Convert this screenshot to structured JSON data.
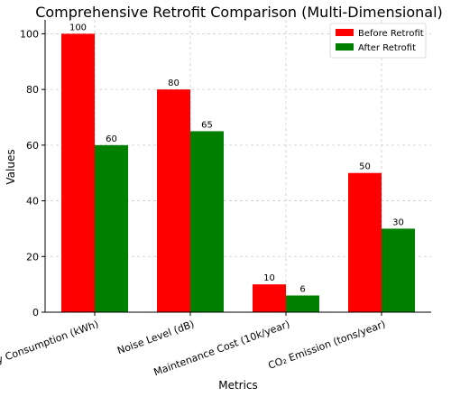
{
  "chart_data": {
    "type": "bar",
    "title": "Comprehensive Retrofit Comparison (Multi-Dimensional)",
    "xlabel": "Metrics",
    "ylabel": "Values",
    "categories": [
      "Energy Consumption (kWh)",
      "Noise Level (dB)",
      "Maintenance Cost (10k/year)",
      "CO₂ Emission (tons/year)"
    ],
    "series": [
      {
        "name": "Before Retrofit",
        "values": [
          100,
          80,
          10,
          50
        ],
        "color": "#ff0000"
      },
      {
        "name": "After Retrofit",
        "values": [
          60,
          65,
          6,
          30
        ],
        "color": "#008000"
      }
    ],
    "ylim": [
      0,
      105
    ],
    "yticks": [
      0,
      20,
      40,
      60,
      80,
      100
    ],
    "grid": true,
    "legend_position": "top-right"
  }
}
